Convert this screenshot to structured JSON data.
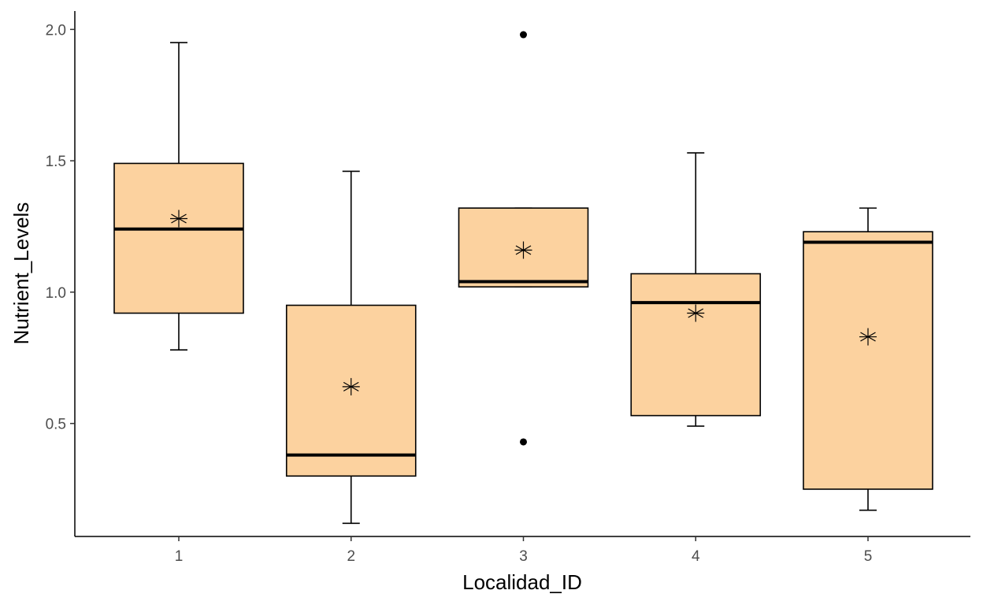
{
  "chart_data": {
    "type": "boxplot",
    "xlabel": "Localidad_ID",
    "ylabel": "Nutrient_Levels",
    "categories": [
      "1",
      "2",
      "3",
      "4",
      "5"
    ],
    "yticks": [
      "0.5",
      "1.0",
      "1.5",
      "2.0"
    ],
    "ylim": [
      0.07,
      2.07
    ],
    "grid": false,
    "legend": "none",
    "box_fill": "#FCD29F",
    "boxes": [
      {
        "category": "1",
        "whisker_low": 0.78,
        "q1": 0.92,
        "median": 1.24,
        "q3": 1.49,
        "whisker_high": 1.95,
        "mean": 1.28,
        "outliers": []
      },
      {
        "category": "2",
        "whisker_low": 0.12,
        "q1": 0.3,
        "median": 0.38,
        "q3": 0.95,
        "whisker_high": 1.46,
        "mean": 0.64,
        "outliers": []
      },
      {
        "category": "3",
        "whisker_low": 1.02,
        "q1": 1.02,
        "median": 1.04,
        "q3": 1.32,
        "whisker_high": 1.32,
        "mean": 1.16,
        "outliers": [
          0.43,
          1.98
        ]
      },
      {
        "category": "4",
        "whisker_low": 0.49,
        "q1": 0.53,
        "median": 0.96,
        "q3": 1.07,
        "whisker_high": 1.53,
        "mean": 0.92,
        "outliers": []
      },
      {
        "category": "5",
        "whisker_low": 0.17,
        "q1": 0.25,
        "median": 1.19,
        "q3": 1.23,
        "whisker_high": 1.32,
        "mean": 0.83,
        "outliers": []
      }
    ]
  }
}
